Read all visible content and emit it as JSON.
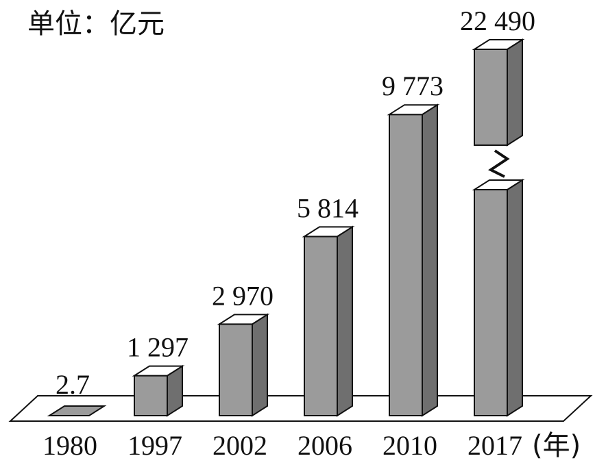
{
  "chart_data": {
    "type": "bar3d",
    "title": "单位：亿元",
    "x_label": "(年)",
    "categories": [
      "1980",
      "1997",
      "2002",
      "2006",
      "2010",
      "2017"
    ],
    "values": [
      2.7,
      1297,
      2970,
      5814,
      9773,
      22490
    ],
    "value_labels": [
      "2.7",
      "1 297",
      "2 970",
      "5 814",
      "9 773",
      "22 490"
    ],
    "color": "#9b9b9b",
    "axis_break": true
  }
}
